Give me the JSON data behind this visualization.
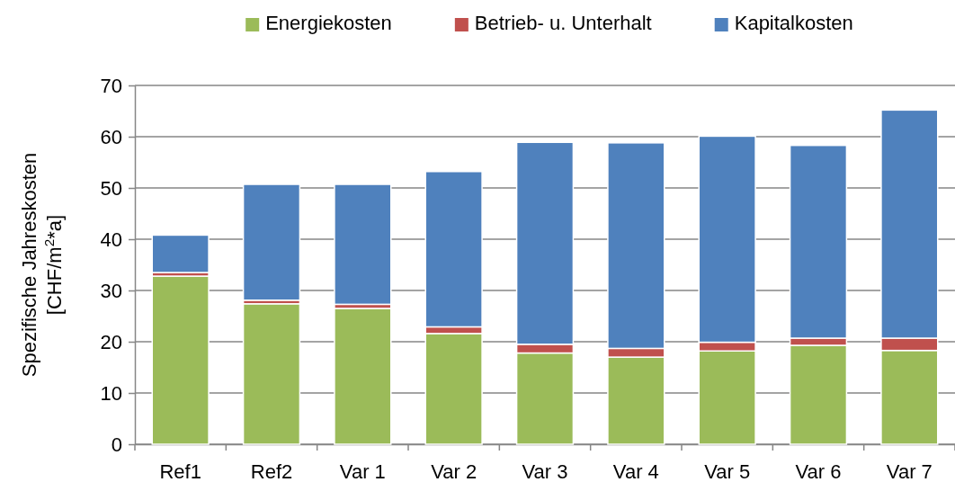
{
  "chart_data": {
    "type": "bar",
    "stacked": true,
    "ylabel": "Spezifische Jahreskosten\n[CHF/m$^{2}$*a]",
    "categories": [
      "Ref1",
      "Ref2",
      "Var 1",
      "Var 2",
      "Var 3",
      "Var 4",
      "Var 5",
      "Var 6",
      "Var 7"
    ],
    "series": [
      {
        "name": "Energiekosten",
        "color": "#9bbb59",
        "values": [
          32.8,
          27.4,
          26.5,
          21.6,
          17.8,
          17.0,
          18.2,
          19.3,
          18.3
        ]
      },
      {
        "name": "Betrieb- u. Unterhalt",
        "color": "#c0504d",
        "values": [
          0.7,
          0.7,
          0.8,
          1.3,
          1.7,
          1.7,
          1.7,
          1.4,
          2.4
        ]
      },
      {
        "name": "Kapitalkosten",
        "color": "#4f81bd",
        "values": [
          7.3,
          22.6,
          23.4,
          30.3,
          39.4,
          40.1,
          40.2,
          37.6,
          44.5
        ]
      }
    ],
    "ylim": [
      0,
      70
    ],
    "yticks": [
      0,
      10,
      20,
      30,
      40,
      50,
      60,
      70
    ],
    "grid": "y",
    "legend": "top"
  }
}
